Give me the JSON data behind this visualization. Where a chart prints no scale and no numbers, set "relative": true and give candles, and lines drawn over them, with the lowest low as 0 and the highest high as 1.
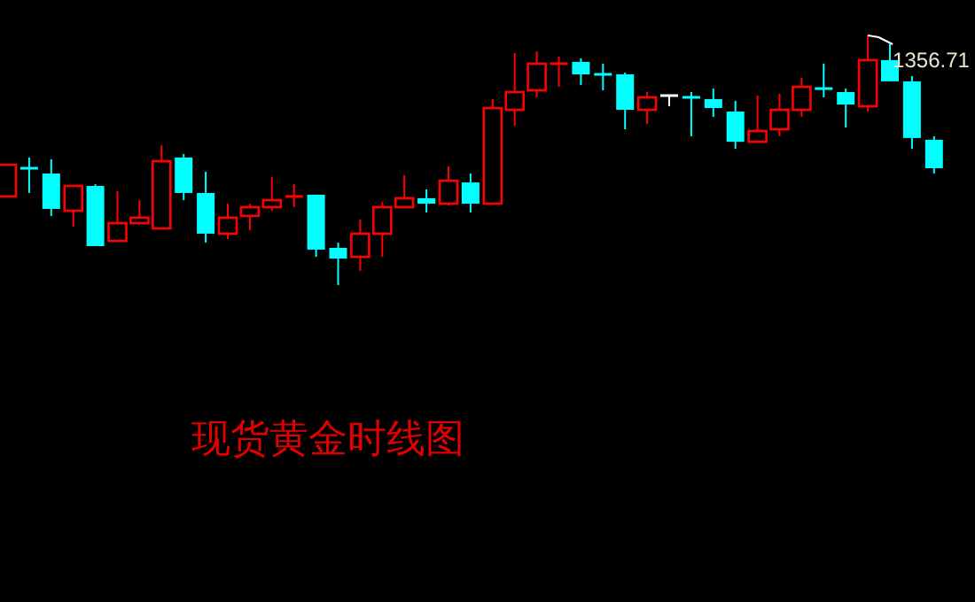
{
  "chart_data": {
    "type": "candlestick",
    "title": "现货黄金时线图",
    "relative": true,
    "annotations": [
      "1356.71"
    ],
    "categories": [
      null,
      null,
      null,
      null,
      null,
      null,
      null,
      null,
      null,
      null,
      null,
      null,
      null,
      null,
      null,
      null,
      null,
      null,
      null,
      null,
      null,
      null,
      null,
      null,
      null,
      null,
      null,
      null,
      null,
      null,
      null,
      null,
      null,
      null,
      null,
      null,
      null,
      null,
      null,
      null,
      null,
      null,
      null
    ],
    "colors": [
      "#ff0000",
      "#00ffff",
      "#00ffff",
      "#ff0000",
      "#00ffff",
      "#ff0000",
      "#ff0000",
      "#ff0000",
      "#00ffff",
      "#00ffff",
      "#ff0000",
      "#ff0000",
      "#ff0000",
      "#ff0000",
      "#00ffff",
      "#00ffff",
      "#ff0000",
      "#ff0000",
      "#ff0000",
      "#00ffff",
      "#ff0000",
      "#00ffff",
      "#ff0000",
      "#ff0000",
      "#ff0000",
      "#ff0000",
      "#00ffff",
      "#00ffff",
      "#00ffff",
      "#ff0000",
      "#ffffff",
      "#00ffff",
      "#00ffff",
      "#00ffff",
      "#ff0000",
      "#ff0000",
      "#ff0000",
      "#00ffff",
      "#00ffff",
      "#ff0000",
      "#00ffff",
      "#00ffff",
      "#00ffff"
    ],
    "ohlc": [
      [
        0.355,
        0.482,
        0.355,
        0.482
      ],
      [
        0.468,
        0.511,
        0.369,
        0.468
      ],
      [
        0.447,
        0.504,
        0.277,
        0.305
      ],
      [
        0.298,
        0.397,
        0.234,
        0.397
      ],
      [
        0.397,
        0.404,
        0.156,
        0.156
      ],
      [
        0.177,
        0.376,
        0.177,
        0.248
      ],
      [
        0.248,
        0.34,
        0.248,
        0.27
      ],
      [
        0.227,
        0.56,
        0.227,
        0.496
      ],
      [
        0.511,
        0.525,
        0.34,
        0.369
      ],
      [
        0.369,
        0.454,
        0.17,
        0.206
      ],
      [
        0.206,
        0.326,
        0.184,
        0.27
      ],
      [
        0.277,
        0.326,
        0.22,
        0.312
      ],
      [
        0.312,
        0.433,
        0.298,
        0.34
      ],
      [
        0.355,
        0.404,
        0.312,
        0.355
      ],
      [
        0.362,
        0.362,
        0.113,
        0.142
      ],
      [
        0.149,
        0.17,
        0,
        0.106
      ],
      [
        0.113,
        0.262,
        0.057,
        0.206
      ],
      [
        0.206,
        0.333,
        0.113,
        0.312
      ],
      [
        0.312,
        0.44,
        0.312,
        0.348
      ],
      [
        0.348,
        0.383,
        0.291,
        0.326
      ],
      [
        0.326,
        0.475,
        0.319,
        0.418
      ],
      [
        0.411,
        0.447,
        0.291,
        0.326
      ],
      [
        0.326,
        0.745,
        0.326,
        0.709
      ],
      [
        0.702,
        0.929,
        0.638,
        0.773
      ],
      [
        0.78,
        0.936,
        0.752,
        0.887
      ],
      [
        0.887,
        0.915,
        0.794,
        0.887
      ],
      [
        0.894,
        0.908,
        0.801,
        0.844
      ],
      [
        0.844,
        0.887,
        0.78,
        0.844
      ],
      [
        0.844,
        0.851,
        0.624,
        0.702
      ],
      [
        0.702,
        0.773,
        0.645,
        0.752
      ],
      [
        0.759,
        0.759,
        0.716,
        0.759
      ],
      [
        0.752,
        0.773,
        0.596,
        0.752
      ],
      [
        0.745,
        0.787,
        0.674,
        0.709
      ],
      [
        0.695,
        0.738,
        0.546,
        0.574
      ],
      [
        0.574,
        0.759,
        0.574,
        0.617
      ],
      [
        0.624,
        0.766,
        0.596,
        0.702
      ],
      [
        0.702,
        0.83,
        0.674,
        0.794
      ],
      [
        0.787,
        0.887,
        0.752,
        0.787
      ],
      [
        0.773,
        0.787,
        0.631,
        0.723
      ],
      [
        0.716,
        1,
        0.695,
        0.901
      ],
      [
        0.901,
        0.965,
        0.816,
        0.816
      ],
      [
        0.816,
        0.837,
        0.546,
        0.589
      ],
      [
        0.582,
        0.596,
        0.447,
        0.468
      ]
    ]
  }
}
